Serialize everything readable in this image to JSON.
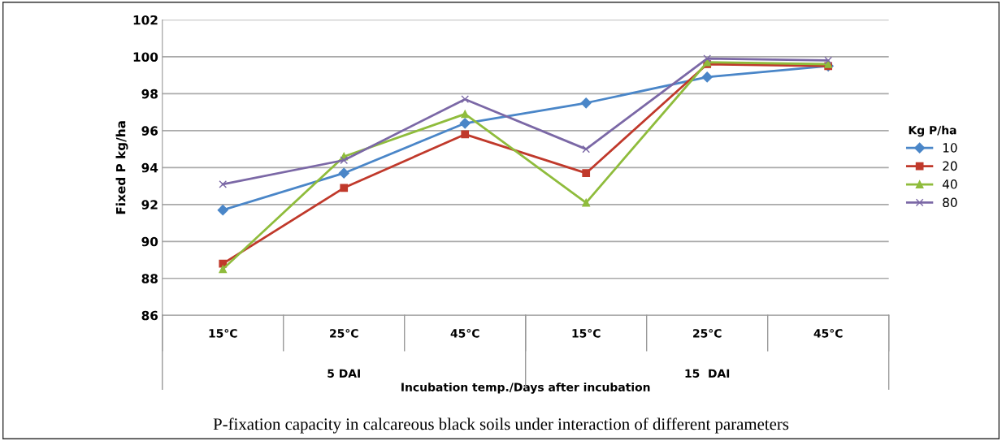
{
  "chart_data": {
    "type": "line",
    "ylabel": "Fixed P kg/ha",
    "xlabel": "Incubation temp./Days after incubation",
    "legend_title": "Kg P/ha",
    "legend": "right",
    "grid": "y",
    "categories": [
      "15°C",
      "25°C",
      "45°C",
      "15°C",
      "25°C",
      "45°C"
    ],
    "ylim": [
      86,
      102
    ],
    "yticks": [
      86,
      88,
      90,
      92,
      94,
      96,
      98,
      100,
      102
    ],
    "series": [
      {
        "name": "10",
        "color": "#4a86c8",
        "marker": "diamond",
        "values": [
          91.7,
          93.7,
          96.4,
          97.5,
          98.9,
          99.5
        ]
      },
      {
        "name": "20",
        "color": "#c0392b",
        "marker": "square",
        "values": [
          88.8,
          92.9,
          95.8,
          93.7,
          99.6,
          99.5
        ]
      },
      {
        "name": "40",
        "color": "#8fbc3c",
        "marker": "triangle",
        "values": [
          88.5,
          94.6,
          96.9,
          92.1,
          99.7,
          99.6
        ]
      },
      {
        "name": "80",
        "color": "#7b68a6",
        "marker": "cross",
        "values": [
          93.1,
          94.4,
          97.7,
          95.0,
          99.9,
          99.8
        ]
      }
    ],
    "annotations": [
      "5 DAI",
      "15  DAI",
      "P-fixation capacity in calcareous black soils under interaction of different parameters"
    ]
  }
}
